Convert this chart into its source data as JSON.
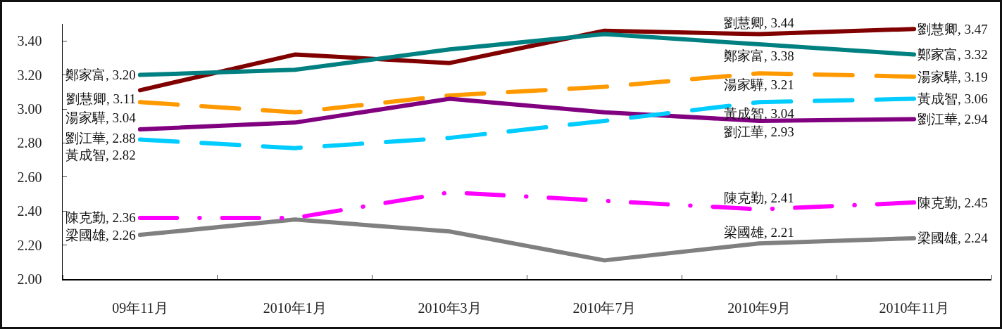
{
  "chart_data": {
    "type": "line",
    "categories": [
      "09年11月",
      "2010年1月",
      "2010年3月",
      "2010年7月",
      "2010年9月",
      "2010年11月"
    ],
    "ylim": [
      2,
      3.5
    ],
    "yticks": [
      {
        "value": 2,
        "label": "2.00"
      },
      {
        "value": 2.2,
        "label": "2.20"
      },
      {
        "value": 2.4,
        "label": "2.40"
      },
      {
        "value": 2.6,
        "label": "2.60"
      },
      {
        "value": 2.8,
        "label": "2.80"
      },
      {
        "value": 3,
        "label": "3.00"
      },
      {
        "value": 3.2,
        "label": "3.20"
      },
      {
        "value": 3.4,
        "label": "3.40"
      }
    ],
    "marker": "none",
    "series": [
      {
        "color": "#800000",
        "line_style": "solid",
        "values": [
          3.11,
          3.32,
          3.27,
          3.46,
          3.44,
          3.47
        ],
        "value_labels": [
          "劉慧卿, 3.11",
          null,
          null,
          null,
          "劉慧卿, 3.44",
          "劉慧卿, 3.47"
        ]
      },
      {
        "color": "#008080",
        "line_style": "solid",
        "values": [
          3.2,
          3.23,
          3.35,
          3.44,
          3.38,
          3.32
        ],
        "value_labels": [
          "鄭家富, 3.20",
          null,
          null,
          null,
          "鄭家富, 3.38",
          "鄭家富, 3.32"
        ]
      },
      {
        "color": "#ff9900",
        "line_style": "dashed",
        "values": [
          3.04,
          2.98,
          3.08,
          3.13,
          3.21,
          3.19
        ],
        "value_labels": [
          "湯家驊, 3.04",
          null,
          null,
          null,
          "湯家驊, 3.21",
          "湯家驊, 3.19"
        ]
      },
      {
        "color": "#800080",
        "line_style": "solid",
        "values": [
          2.88,
          2.92,
          3.06,
          2.98,
          2.93,
          2.94
        ],
        "value_labels": [
          "劉江華, 2.88",
          null,
          null,
          null,
          "劉江華, 2.93",
          "劉江華, 2.94"
        ]
      },
      {
        "color": "#00ccff",
        "line_style": "dashed",
        "values": [
          2.82,
          2.77,
          2.83,
          2.93,
          3.04,
          3.06
        ],
        "value_labels": [
          "黃成智, 2.82",
          null,
          null,
          null,
          "黃成智, 3.04",
          "黃成智, 3.06"
        ]
      },
      {
        "color": "#808080",
        "line_style": "solid",
        "values": [
          2.26,
          2.35,
          2.28,
          2.11,
          2.21,
          2.24
        ],
        "value_labels": [
          "梁國雄, 2.26",
          null,
          null,
          null,
          "梁國雄, 2.21",
          "梁國雄, 2.24"
        ]
      },
      {
        "color": "#ff00ff",
        "line_style": "dashdot",
        "values": [
          2.36,
          2.36,
          2.51,
          2.46,
          2.41,
          2.45
        ],
        "value_labels": [
          "陳克勤, 2.36",
          null,
          null,
          null,
          "陳克勤, 2.41",
          "陳克勤, 2.45"
        ]
      }
    ]
  }
}
